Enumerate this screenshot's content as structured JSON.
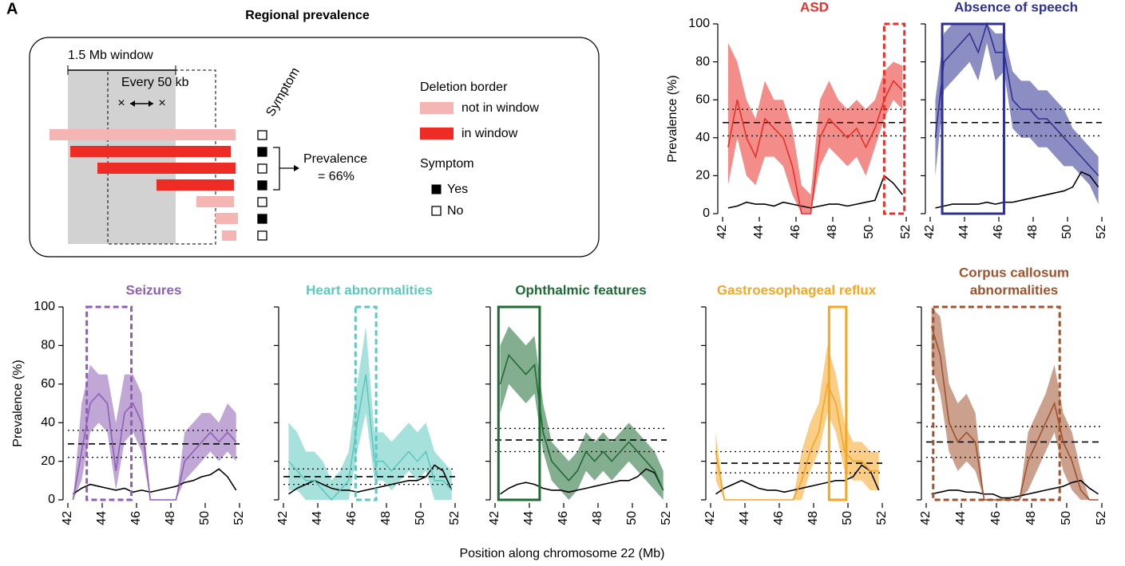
{
  "panel_label": "A",
  "schematic": {
    "title": "Regional prevalence",
    "window": "1.5 Mb window",
    "step": "Every 50 kb",
    "symptom_column": "Symptom",
    "legend_title": "Deletion border",
    "not_in_window": "not in window",
    "in_window": "in window",
    "prevalence": "Prevalence",
    "prevalence_value": "= 66%",
    "symptom_title": "Symptom",
    "yes": "Yes",
    "no": "No"
  },
  "xlabel": "Position along chromosome 22 (Mb)",
  "chart_data": [
    {
      "type": "line",
      "title": "ASD",
      "ylabel": "Prevalence (%)",
      "color": "#e8302a",
      "xlim": [
        42,
        52
      ],
      "xticks": [
        42,
        44,
        46,
        48,
        50,
        52
      ],
      "ylim": [
        0,
        100
      ],
      "yticks": [
        0,
        20,
        40,
        60,
        80,
        100
      ],
      "x": [
        42.3,
        42.8,
        43.3,
        43.8,
        44.3,
        44.8,
        45.3,
        45.8,
        46.3,
        46.8,
        47.3,
        47.8,
        48.3,
        48.8,
        49.3,
        49.8,
        50.3,
        50.8,
        51.3,
        51.8
      ],
      "values": [
        35,
        60,
        40,
        30,
        50,
        45,
        40,
        25,
        0,
        0,
        40,
        50,
        45,
        40,
        45,
        35,
        45,
        60,
        70,
        65
      ],
      "lower": [
        15,
        40,
        20,
        15,
        30,
        30,
        25,
        10,
        0,
        0,
        25,
        35,
        30,
        25,
        30,
        20,
        35,
        50,
        60,
        55
      ],
      "upper": [
        90,
        80,
        60,
        50,
        70,
        60,
        60,
        45,
        15,
        10,
        60,
        70,
        60,
        55,
        60,
        55,
        60,
        75,
        80,
        78
      ],
      "coverage": [
        3,
        4,
        6,
        5,
        5,
        4,
        6,
        5,
        4,
        3,
        4,
        5,
        5,
        4,
        5,
        6,
        7,
        20,
        16,
        10
      ],
      "reference": {
        "mean": 48,
        "lower": 41,
        "upper": 55
      },
      "highlight": {
        "x": [
          50.8,
          51.9
        ],
        "style": "dashed"
      }
    },
    {
      "type": "line",
      "title": "Absence of speech",
      "color": "#2e3192",
      "xlim": [
        42,
        52
      ],
      "xticks": [
        42,
        44,
        46,
        48,
        50,
        52
      ],
      "ylim": [
        0,
        100
      ],
      "yticks": [
        0,
        20,
        40,
        60,
        80,
        100
      ],
      "x": [
        42.3,
        42.8,
        43.3,
        43.8,
        44.3,
        44.8,
        45.3,
        45.8,
        46.3,
        46.8,
        47.3,
        47.8,
        48.3,
        48.8,
        49.3,
        49.8,
        50.3,
        50.8,
        51.3,
        51.8
      ],
      "values": [
        40,
        80,
        85,
        90,
        95,
        85,
        100,
        85,
        85,
        60,
        55,
        55,
        50,
        50,
        45,
        40,
        35,
        30,
        25,
        20
      ],
      "lower": [
        20,
        65,
        70,
        75,
        80,
        70,
        90,
        70,
        75,
        45,
        40,
        40,
        35,
        35,
        30,
        25,
        25,
        20,
        15,
        5
      ],
      "upper": [
        60,
        95,
        100,
        100,
        100,
        100,
        100,
        95,
        95,
        75,
        70,
        70,
        65,
        65,
        60,
        55,
        45,
        40,
        35,
        30
      ],
      "coverage": [
        3,
        4,
        5,
        5,
        5,
        5,
        6,
        5,
        6,
        6,
        7,
        8,
        9,
        10,
        11,
        12,
        14,
        22,
        20,
        14
      ],
      "reference": {
        "mean": 48,
        "lower": 41,
        "upper": 55
      },
      "highlight": {
        "x": [
          42.7,
          46.3
        ],
        "style": "solid"
      }
    },
    {
      "type": "line",
      "title": "Seizures",
      "ylabel": "Prevalence (%)",
      "color": "#8e5fb5",
      "xlim": [
        42,
        52
      ],
      "xticks": [
        42,
        44,
        46,
        48,
        50,
        52
      ],
      "ylim": [
        0,
        100
      ],
      "yticks": [
        0,
        20,
        40,
        60,
        80,
        100
      ],
      "x": [
        42.3,
        42.8,
        43.3,
        43.8,
        44.3,
        44.8,
        45.3,
        45.8,
        46.3,
        46.8,
        47.3,
        47.8,
        48.3,
        48.8,
        49.3,
        49.8,
        50.3,
        50.8,
        51.3,
        51.8
      ],
      "values": [
        0,
        25,
        50,
        55,
        50,
        15,
        45,
        50,
        40,
        0,
        0,
        0,
        0,
        20,
        25,
        30,
        35,
        30,
        35,
        30
      ],
      "lower": [
        0,
        10,
        35,
        40,
        35,
        5,
        30,
        35,
        25,
        0,
        0,
        0,
        0,
        10,
        15,
        20,
        25,
        20,
        25,
        20
      ],
      "upper": [
        0,
        50,
        70,
        65,
        65,
        40,
        65,
        65,
        55,
        0,
        0,
        0,
        0,
        35,
        40,
        45,
        45,
        40,
        50,
        45
      ],
      "coverage": [
        3,
        6,
        8,
        7,
        6,
        5,
        6,
        4,
        5,
        4,
        5,
        6,
        7,
        9,
        10,
        12,
        13,
        16,
        12,
        5
      ],
      "reference": {
        "mean": 29,
        "lower": 22,
        "upper": 36
      },
      "highlight": {
        "x": [
          43.1,
          45.7
        ],
        "style": "dashed"
      }
    },
    {
      "type": "line",
      "title": "Heart abnormalities",
      "color": "#5ec8c0",
      "xlim": [
        42,
        52
      ],
      "xticks": [
        42,
        44,
        46,
        48,
        50,
        52
      ],
      "ylim": [
        0,
        100
      ],
      "yticks": [
        0,
        20,
        40,
        60,
        80,
        100
      ],
      "x": [
        42.3,
        42.8,
        43.3,
        43.8,
        44.3,
        44.8,
        45.3,
        45.8,
        46.3,
        46.8,
        47.3,
        47.8,
        48.3,
        48.8,
        49.3,
        49.8,
        50.3,
        50.8,
        51.3,
        51.8
      ],
      "values": [
        20,
        15,
        10,
        10,
        5,
        0,
        5,
        10,
        40,
        65,
        20,
        20,
        15,
        20,
        25,
        20,
        25,
        10,
        10,
        5
      ],
      "lower": [
        5,
        5,
        0,
        0,
        0,
        0,
        0,
        0,
        25,
        45,
        10,
        10,
        5,
        10,
        15,
        10,
        15,
        0,
        0,
        0
      ],
      "upper": [
        40,
        35,
        25,
        25,
        20,
        10,
        15,
        25,
        60,
        90,
        35,
        35,
        30,
        35,
        40,
        35,
        40,
        25,
        20,
        15
      ],
      "coverage": [
        3,
        6,
        8,
        10,
        8,
        6,
        5,
        5,
        4,
        5,
        6,
        7,
        8,
        9,
        10,
        10,
        12,
        18,
        15,
        5
      ],
      "reference": {
        "mean": 12,
        "lower": 8,
        "upper": 16
      },
      "highlight": {
        "x": [
          46.2,
          47.4
        ],
        "style": "dashed"
      }
    },
    {
      "type": "line",
      "title": "Ophthalmic features",
      "color": "#1f6b35",
      "xlim": [
        42,
        52
      ],
      "xticks": [
        42,
        44,
        46,
        48,
        50,
        52
      ],
      "ylim": [
        0,
        100
      ],
      "yticks": [
        0,
        20,
        40,
        60,
        80,
        100
      ],
      "x": [
        42.3,
        42.8,
        43.3,
        43.8,
        44.3,
        44.8,
        45.3,
        45.8,
        46.3,
        46.8,
        47.3,
        47.8,
        48.3,
        48.8,
        49.3,
        49.8,
        50.3,
        50.8,
        51.3,
        51.8
      ],
      "values": [
        60,
        75,
        70,
        65,
        70,
        35,
        20,
        15,
        10,
        15,
        25,
        20,
        25,
        20,
        25,
        30,
        25,
        20,
        15,
        5
      ],
      "lower": [
        45,
        60,
        55,
        50,
        55,
        25,
        10,
        5,
        0,
        5,
        15,
        10,
        15,
        10,
        15,
        20,
        15,
        10,
        5,
        0
      ],
      "upper": [
        80,
        90,
        85,
        80,
        85,
        50,
        30,
        25,
        20,
        25,
        35,
        30,
        35,
        30,
        35,
        40,
        35,
        30,
        25,
        15
      ],
      "coverage": [
        3,
        6,
        8,
        9,
        8,
        6,
        5,
        5,
        4,
        5,
        6,
        7,
        8,
        9,
        10,
        10,
        12,
        16,
        14,
        5
      ],
      "reference": {
        "mean": 31,
        "lower": 25,
        "upper": 37
      },
      "highlight": {
        "x": [
          42.2,
          44.6
        ],
        "style": "solid"
      }
    },
    {
      "type": "line",
      "title": "Gastroesophageal reflux",
      "color": "#f5a623",
      "xlim": [
        42,
        52
      ],
      "xticks": [
        42,
        44,
        46,
        48,
        50,
        52
      ],
      "ylim": [
        0,
        100
      ],
      "yticks": [
        0,
        20,
        40,
        60,
        80,
        100
      ],
      "x": [
        42.3,
        42.8,
        43.3,
        43.8,
        44.3,
        44.8,
        45.3,
        45.8,
        46.3,
        46.8,
        47.3,
        47.8,
        48.3,
        48.8,
        49.3,
        49.8,
        50.3,
        50.8,
        51.3,
        51.8
      ],
      "values": [
        25,
        0,
        0,
        0,
        0,
        0,
        0,
        0,
        0,
        0,
        10,
        25,
        35,
        60,
        50,
        25,
        20,
        20,
        15,
        15
      ],
      "lower": [
        10,
        0,
        0,
        0,
        0,
        0,
        0,
        0,
        0,
        0,
        0,
        15,
        25,
        45,
        35,
        15,
        10,
        10,
        5,
        5
      ],
      "upper": [
        35,
        0,
        0,
        0,
        0,
        0,
        0,
        0,
        0,
        0,
        25,
        40,
        50,
        80,
        65,
        40,
        30,
        30,
        25,
        25
      ],
      "coverage": [
        3,
        6,
        8,
        10,
        8,
        6,
        5,
        5,
        4,
        5,
        6,
        7,
        8,
        9,
        10,
        10,
        12,
        18,
        15,
        5
      ],
      "reference": {
        "mean": 19,
        "lower": 14,
        "upper": 25
      },
      "highlight": {
        "x": [
          48.9,
          49.9
        ],
        "style": "solid"
      }
    },
    {
      "type": "line",
      "title": [
        "Corpus callosum",
        "abnormalities"
      ],
      "color": "#a0522d",
      "xlim": [
        42,
        52
      ],
      "xticks": [
        42,
        44,
        46,
        48,
        50,
        52
      ],
      "ylim": [
        0,
        100
      ],
      "yticks": [
        0,
        20,
        40,
        60,
        80,
        100
      ],
      "x": [
        42.3,
        42.8,
        43.3,
        43.8,
        44.3,
        44.8,
        45.3,
        45.8,
        46.3,
        46.8,
        47.3,
        47.8,
        48.3,
        48.8,
        49.3,
        49.8,
        50.3,
        50.8,
        51.3,
        51.8
      ],
      "values": [
        90,
        75,
        40,
        30,
        35,
        30,
        0,
        0,
        0,
        0,
        0,
        20,
        30,
        40,
        50,
        30,
        20,
        5,
        0,
        0
      ],
      "lower": [
        70,
        55,
        25,
        15,
        20,
        15,
        0,
        0,
        0,
        0,
        0,
        5,
        15,
        25,
        35,
        15,
        5,
        0,
        0,
        0
      ],
      "upper": [
        100,
        95,
        60,
        50,
        55,
        45,
        0,
        0,
        0,
        0,
        0,
        35,
        45,
        55,
        70,
        45,
        35,
        15,
        0,
        0
      ],
      "coverage": [
        3,
        4,
        5,
        5,
        4,
        4,
        3,
        3,
        1,
        1,
        2,
        3,
        4,
        5,
        6,
        7,
        9,
        10,
        6,
        3
      ],
      "reference": {
        "mean": 30,
        "lower": 22,
        "upper": 38
      },
      "highlight": {
        "x": [
          42.4,
          49.6
        ],
        "style": "dashed"
      }
    }
  ]
}
